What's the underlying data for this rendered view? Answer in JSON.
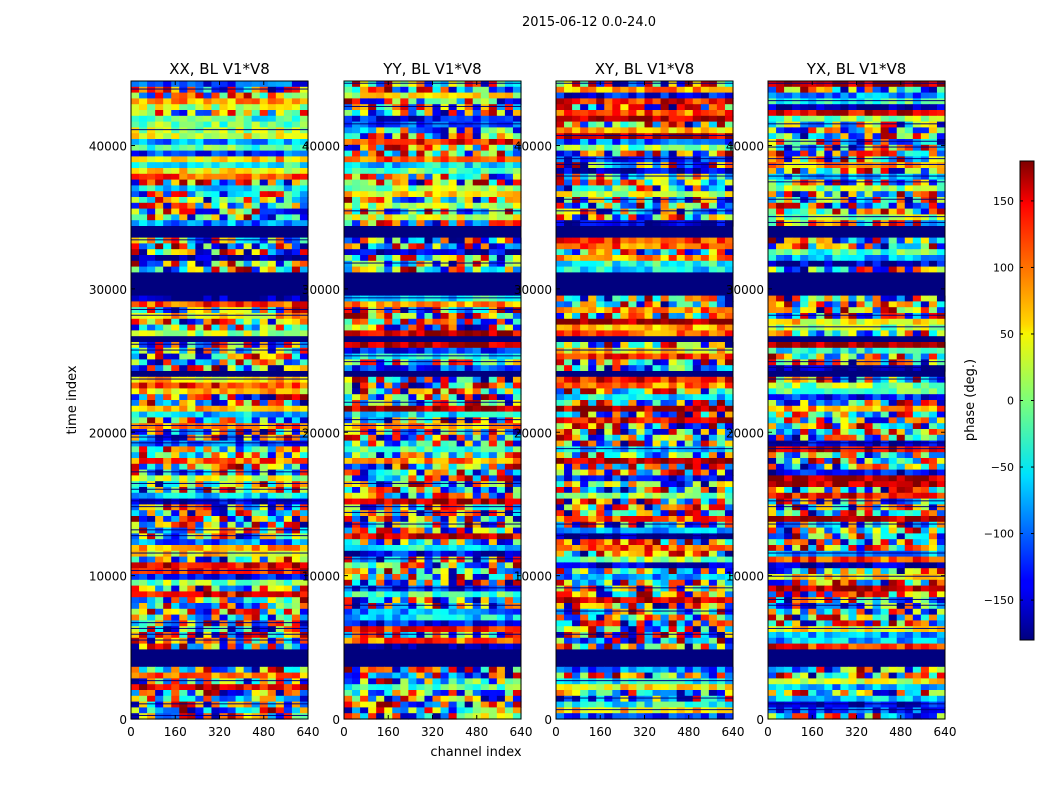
{
  "chart_data": {
    "type": "heatmap",
    "suptitle": "2015-06-12 0.0-24.0",
    "xlabel": "channel index",
    "ylabel": "time index",
    "xlim": [
      0,
      640
    ],
    "ylim": [
      0,
      44500
    ],
    "xticks": [
      0,
      160,
      320,
      480,
      640
    ],
    "yticks": [
      0,
      10000,
      20000,
      30000,
      40000
    ],
    "xtick_labels": [
      "0",
      "160",
      "320",
      "480",
      "640"
    ],
    "ytick_labels": [
      "0",
      "10000",
      "20000",
      "30000",
      "40000"
    ],
    "colormap": "jet",
    "panels": [
      {
        "title": "XX, BL V1*V8"
      },
      {
        "title": "YY, BL V1*V8"
      },
      {
        "title": "XY, BL V1*V8"
      },
      {
        "title": "YX, BL V1*V8"
      }
    ],
    "colorbar": {
      "label": "phase (deg.)",
      "range": [
        -180,
        180
      ],
      "ticks": [
        -150,
        -100,
        -50,
        0,
        50,
        100,
        150
      ],
      "tick_labels": [
        "−150",
        "−100",
        "−50",
        "0",
        "50",
        "100",
        "150"
      ]
    },
    "flagged_time_ranges": [
      [
        3700,
        5000
      ],
      [
        29700,
        31000
      ],
      [
        33700,
        34300
      ],
      [
        26200,
        26800
      ],
      [
        23800,
        24200
      ]
    ],
    "grid": false
  }
}
